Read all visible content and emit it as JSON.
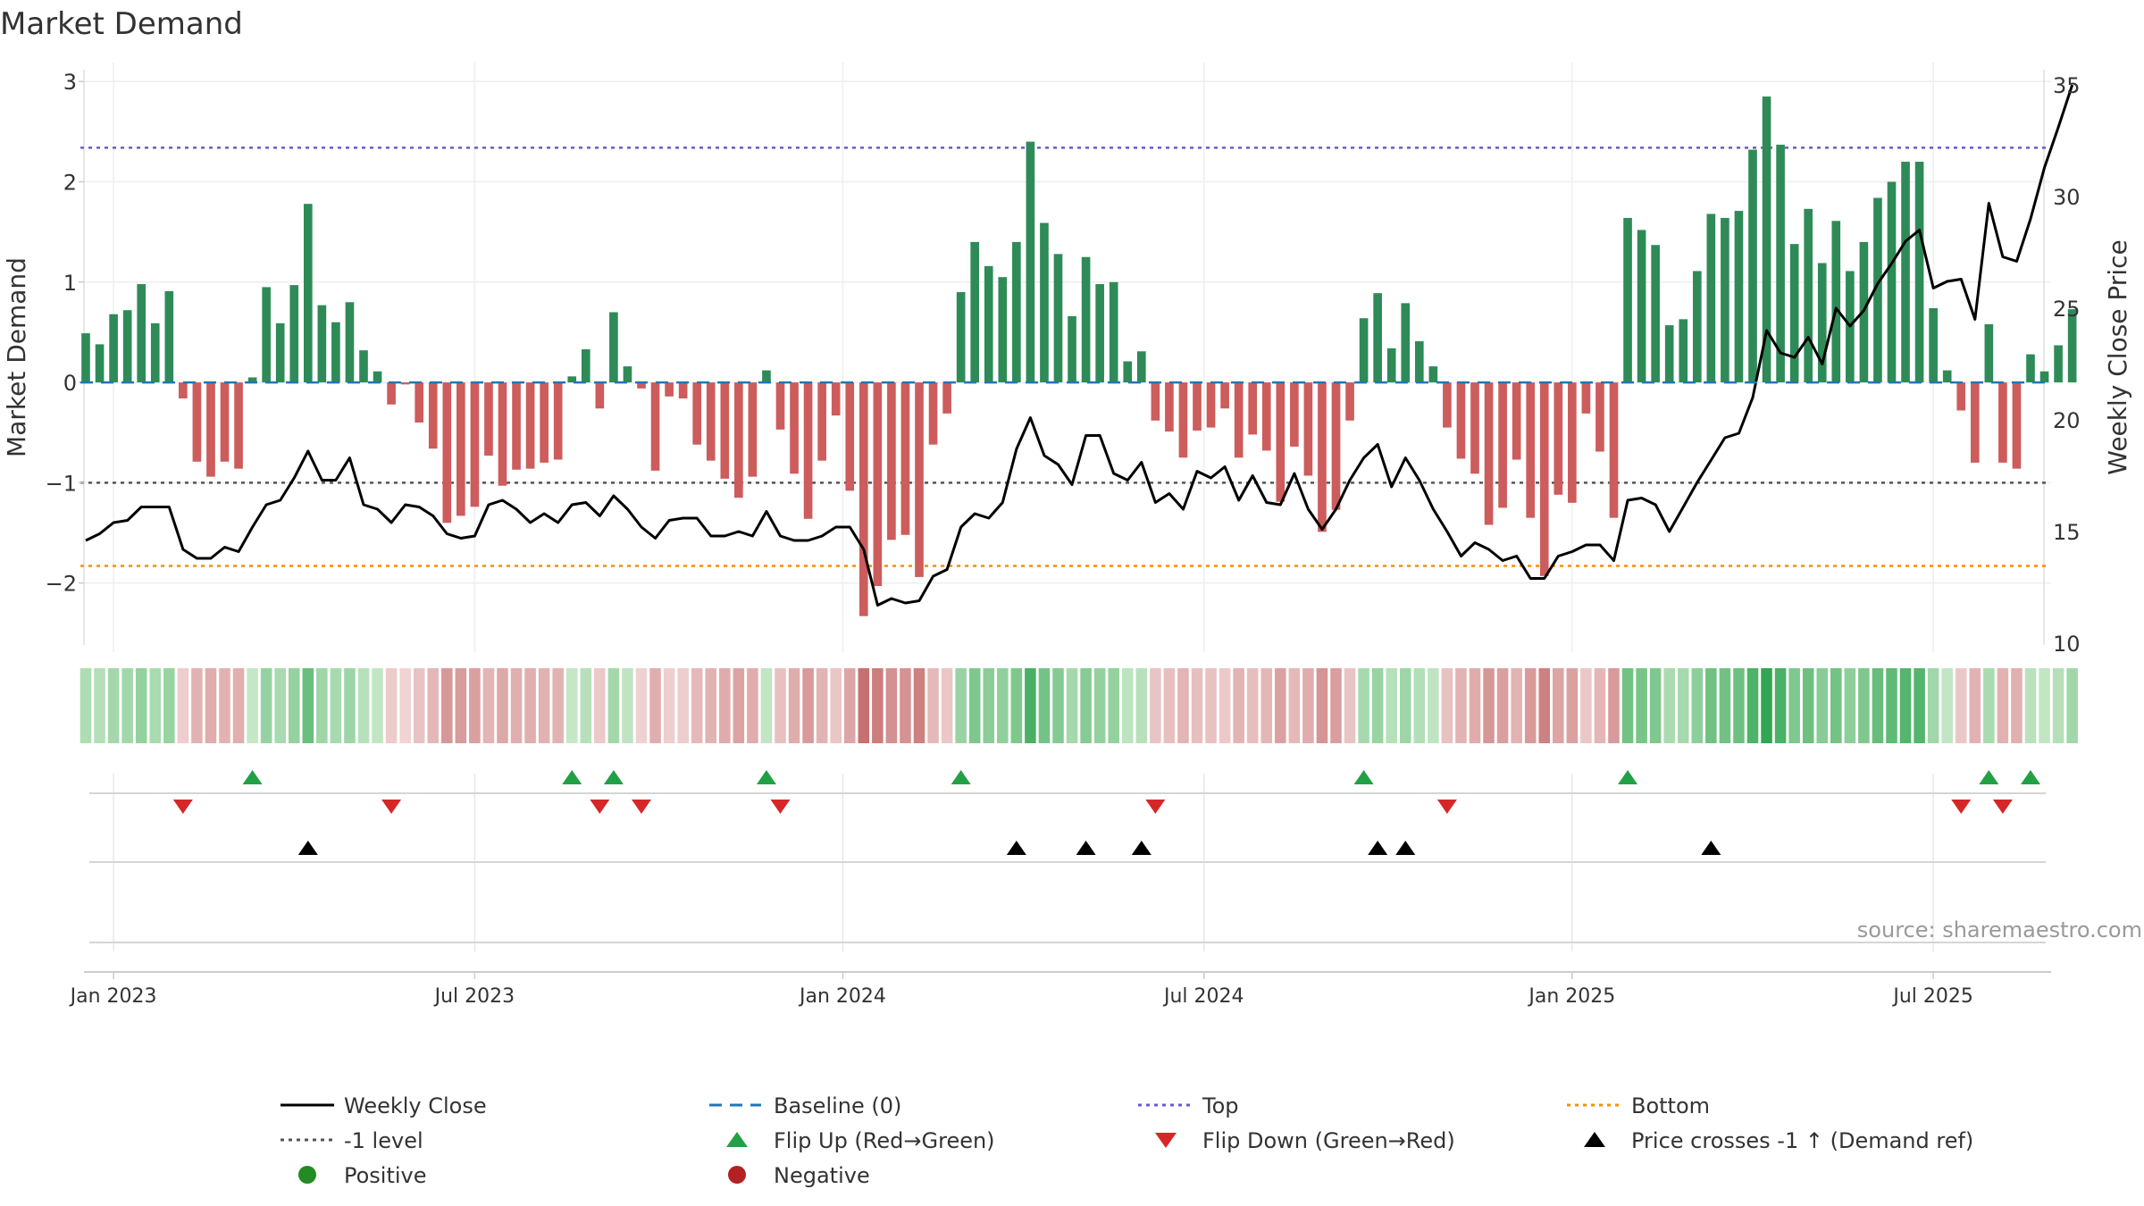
{
  "chart_data": {
    "type": "bar",
    "title": "Market Demand",
    "ylabel": "Market Demand",
    "y2label": "Weekly Close Price",
    "source": "source: sharemaestro.com",
    "ylim": [
      -2.6,
      3.1
    ],
    "y_ticks": [
      3,
      2,
      1,
      0,
      -1,
      -2
    ],
    "y_tick_labels": [
      "3",
      "2",
      "1",
      "0",
      "−1",
      "−2"
    ],
    "y2lim": [
      10,
      35.6
    ],
    "y2_ticks": [
      35,
      30,
      25,
      20,
      15,
      10
    ],
    "x_labels": [
      {
        "label": "Jan 2023",
        "week": 2
      },
      {
        "label": "Jul 2023",
        "week": 28
      },
      {
        "label": "Jan 2024",
        "week": 54.5
      },
      {
        "label": "Jul 2024",
        "week": 80.5
      },
      {
        "label": "Jan 2025",
        "week": 107
      },
      {
        "label": "Jul 2025",
        "week": 133
      }
    ],
    "reference_lines": {
      "baseline": 0,
      "top": 2.34,
      "bottom": -1.83,
      "minus_one": -1
    },
    "demand": [
      0.49,
      0.38,
      0.68,
      0.72,
      0.98,
      0.59,
      0.91,
      -0.16,
      -0.79,
      -0.94,
      -0.79,
      -0.86,
      0.05,
      0.95,
      0.59,
      0.97,
      1.78,
      0.77,
      0.6,
      0.8,
      0.32,
      0.11,
      -0.22,
      -0.02,
      -0.4,
      -0.66,
      -1.4,
      -1.33,
      -1.24,
      -0.73,
      -1.03,
      -0.87,
      -0.86,
      -0.8,
      -0.77,
      0.06,
      0.33,
      -0.26,
      0.7,
      0.16,
      -0.06,
      -0.88,
      -0.14,
      -0.16,
      -0.62,
      -0.78,
      -0.96,
      -1.15,
      -0.94,
      0.12,
      -0.47,
      -0.91,
      -1.36,
      -0.78,
      -0.33,
      -1.08,
      -2.33,
      -2.03,
      -1.57,
      -1.52,
      -1.94,
      -0.62,
      -0.31,
      0.9,
      1.4,
      1.16,
      1.05,
      1.4,
      2.4,
      1.59,
      1.28,
      0.66,
      1.25,
      0.98,
      1.0,
      0.21,
      0.31,
      -0.38,
      -0.49,
      -0.75,
      -0.48,
      -0.45,
      -0.26,
      -0.75,
      -0.52,
      -0.68,
      -1.19,
      -0.64,
      -0.93,
      -1.49,
      -1.27,
      -0.38,
      0.64,
      0.89,
      0.34,
      0.79,
      0.41,
      0.16,
      -0.45,
      -0.76,
      -0.91,
      -1.42,
      -1.25,
      -0.77,
      -1.35,
      -1.93,
      -1.12,
      -1.2,
      -0.31,
      -0.69,
      -1.35,
      1.64,
      1.52,
      1.37,
      0.57,
      0.63,
      1.11,
      1.68,
      1.64,
      1.71,
      2.32,
      2.85,
      2.37,
      1.38,
      1.73,
      1.19,
      1.61,
      1.11,
      1.4,
      1.84,
      2.0,
      2.2,
      2.2,
      0.74,
      0.12,
      -0.28,
      -0.8,
      0.58,
      -0.8,
      -0.86,
      0.28,
      0.11,
      0.37,
      0.73
    ],
    "price": [
      14.6,
      14.9,
      15.4,
      15.5,
      16.1,
      16.1,
      16.1,
      14.2,
      13.8,
      13.8,
      14.3,
      14.1,
      15.2,
      16.2,
      16.4,
      17.4,
      18.6,
      17.3,
      17.3,
      18.3,
      16.2,
      16.0,
      15.4,
      16.2,
      16.1,
      15.7,
      14.9,
      14.7,
      14.8,
      16.2,
      16.4,
      16.0,
      15.4,
      15.8,
      15.4,
      16.2,
      16.3,
      15.7,
      16.6,
      16.0,
      15.2,
      14.7,
      15.5,
      15.6,
      15.6,
      14.8,
      14.8,
      15.0,
      14.8,
      15.9,
      14.8,
      14.6,
      14.6,
      14.8,
      15.2,
      15.2,
      14.2,
      11.7,
      12.0,
      11.8,
      11.9,
      13.0,
      13.3,
      15.2,
      15.8,
      15.6,
      16.3,
      18.7,
      20.1,
      18.4,
      18.0,
      17.1,
      19.3,
      19.3,
      17.6,
      17.3,
      18.1,
      16.3,
      16.7,
      16.0,
      17.7,
      17.4,
      17.9,
      16.4,
      17.5,
      16.3,
      16.2,
      17.6,
      16.0,
      15.1,
      16.0,
      17.3,
      18.3,
      18.9,
      17.0,
      18.3,
      17.3,
      16.0,
      15.0,
      13.9,
      14.5,
      14.2,
      13.7,
      13.9,
      12.9,
      12.9,
      13.9,
      14.1,
      14.4,
      14.4,
      13.7,
      16.4,
      16.5,
      16.2,
      15.0,
      16.1,
      17.2,
      18.2,
      19.2,
      19.4,
      21.0,
      24.0,
      23.0,
      22.8,
      23.7,
      22.5,
      25.0,
      24.2,
      24.9,
      26.1,
      27.0,
      28.0,
      28.5,
      25.9,
      26.2,
      26.3,
      24.5,
      29.7,
      27.3,
      27.1,
      29.0,
      31.3,
      33.1,
      35.0
    ],
    "flip_up_weeks": [
      12,
      35,
      38,
      49,
      63,
      92,
      111,
      137,
      140
    ],
    "flip_down_weeks": [
      7,
      22,
      37,
      40,
      50,
      77,
      98,
      135,
      138
    ],
    "price_cross_weeks": [
      16,
      67,
      72,
      76,
      93,
      95,
      117
    ],
    "legend": {
      "weekly_close": "Weekly Close",
      "baseline": "Baseline (0)",
      "top": "Top",
      "bottom": "Bottom",
      "minus_one": "-1 level",
      "flip_up": "Flip Up (Red→Green)",
      "flip_down": "Flip Down (Green→Red)",
      "price_cross": "Price crosses -1 ↑ (Demand ref)",
      "positive": "Positive",
      "negative": "Negative"
    },
    "colors": {
      "positive_bar": "#2e8b57",
      "negative_bar": "#cd5c5c",
      "price_line": "#000000",
      "baseline": "#1f77b4",
      "top": "#6a5acd",
      "bottom": "#ff8c00",
      "minus_one": "#555555",
      "flip_up": "#22a045",
      "flip_down": "#d62728",
      "price_cross": "#000000",
      "positive_dot": "#228b22",
      "negative_dot": "#b22222"
    }
  }
}
